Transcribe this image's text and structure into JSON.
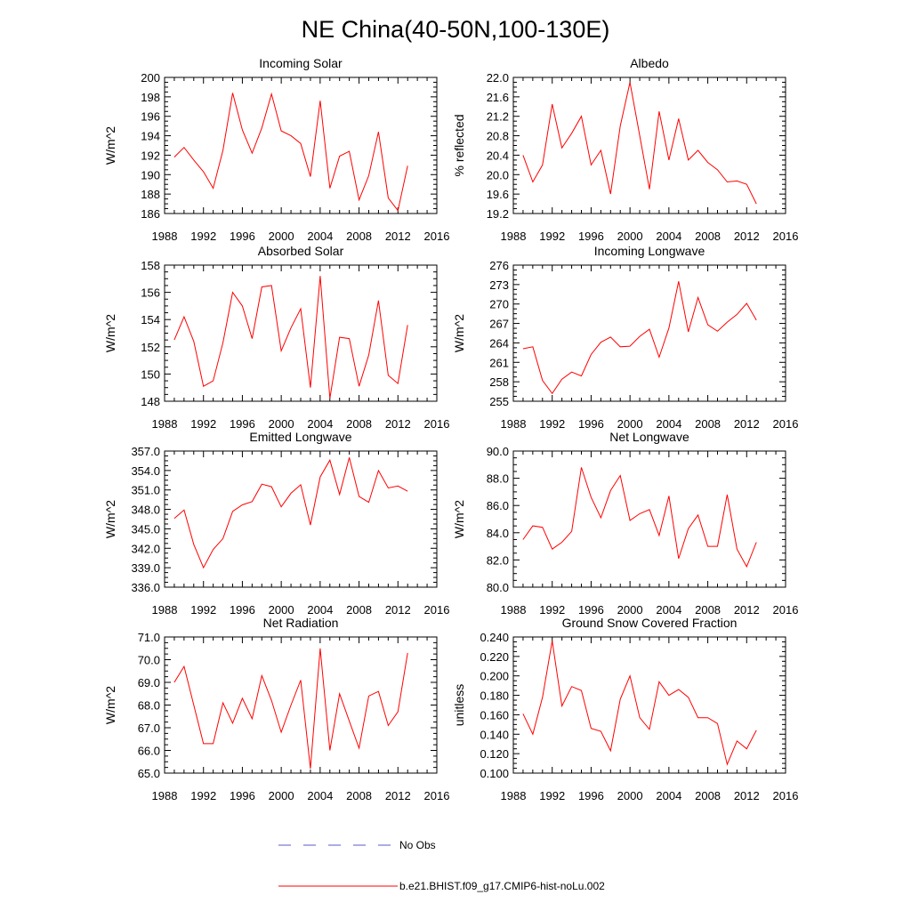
{
  "title": "NE China(40-50N,100-130E)",
  "legend": [
    {
      "label": "No Obs",
      "color": "#5a5ac8",
      "style": "dashed"
    },
    {
      "label": "b.e21.BHIST.f09_g17.CMIP6-hist-noLu.002",
      "color": "#ff0000",
      "style": "solid"
    }
  ],
  "chart_data": [
    {
      "type": "line",
      "title": "Incoming Solar",
      "ylabel": "W/m^2",
      "xlim": [
        1988,
        2016
      ],
      "xticks": [
        "1988",
        "1992",
        "1996",
        "2000",
        "2004",
        "2008",
        "2012",
        "2016"
      ],
      "ylim": [
        186,
        200
      ],
      "yticks": [
        "186",
        "188",
        "190",
        "192",
        "194",
        "196",
        "198",
        "200"
      ],
      "x": [
        1989,
        1990,
        1991,
        1992,
        1993,
        1994,
        1995,
        1996,
        1997,
        1998,
        1999,
        2000,
        2001,
        2002,
        2003,
        2004,
        2005,
        2006,
        2007,
        2008,
        2009,
        2010,
        2011,
        2012,
        2013
      ],
      "series": [
        {
          "values": [
            191.8,
            192.8,
            191.5,
            190.3,
            188.6,
            192.5,
            198.4,
            194.6,
            192.2,
            194.8,
            198.3,
            194.5,
            194.0,
            193.2,
            189.8,
            197.6,
            188.6,
            191.9,
            192.4,
            187.4,
            189.9,
            194.4,
            187.6,
            186.3,
            190.9
          ],
          "color": "#ff0000"
        }
      ]
    },
    {
      "type": "line",
      "title": "Albedo",
      "ylabel": "% reflected",
      "xlim": [
        1988,
        2016
      ],
      "xticks": [
        "1988",
        "1992",
        "1996",
        "2000",
        "2004",
        "2008",
        "2012",
        "2016"
      ],
      "ylim": [
        19.2,
        22.0
      ],
      "yticks": [
        "19.2",
        "19.6",
        "20.0",
        "20.4",
        "20.8",
        "21.2",
        "21.6",
        "22.0"
      ],
      "x": [
        1989,
        1990,
        1991,
        1992,
        1993,
        1994,
        1995,
        1996,
        1997,
        1998,
        1999,
        2000,
        2001,
        2002,
        2003,
        2004,
        2005,
        2006,
        2007,
        2008,
        2009,
        2010,
        2011,
        2012,
        2013
      ],
      "series": [
        {
          "values": [
            20.4,
            19.85,
            20.2,
            21.45,
            20.55,
            20.85,
            21.2,
            20.2,
            20.5,
            19.6,
            21.0,
            21.9,
            20.8,
            19.7,
            21.3,
            20.3,
            21.15,
            20.3,
            20.5,
            20.25,
            20.1,
            19.85,
            19.87,
            19.8,
            19.4
          ],
          "color": "#ff0000"
        }
      ]
    },
    {
      "type": "line",
      "title": "Absorbed Solar",
      "ylabel": "W/m^2",
      "xlim": [
        1988,
        2016
      ],
      "xticks": [
        "1988",
        "1992",
        "1996",
        "2000",
        "2004",
        "2008",
        "2012",
        "2016"
      ],
      "ylim": [
        148,
        158
      ],
      "yticks": [
        "148",
        "150",
        "152",
        "154",
        "156",
        "158"
      ],
      "x": [
        1989,
        1990,
        1991,
        1992,
        1993,
        1994,
        1995,
        1996,
        1997,
        1998,
        1999,
        2000,
        2001,
        2002,
        2003,
        2004,
        2005,
        2006,
        2007,
        2008,
        2009,
        2010,
        2011,
        2012,
        2013
      ],
      "series": [
        {
          "values": [
            152.5,
            154.2,
            152.4,
            149.1,
            149.5,
            152.3,
            156.0,
            155.0,
            152.6,
            156.4,
            156.5,
            151.7,
            153.4,
            154.8,
            149.0,
            157.2,
            148.2,
            152.7,
            152.6,
            149.1,
            151.4,
            155.4,
            149.9,
            149.3,
            153.6
          ],
          "color": "#ff0000"
        }
      ]
    },
    {
      "type": "line",
      "title": "Incoming Longwave",
      "ylabel": "W/m^2",
      "xlim": [
        1988,
        2016
      ],
      "xticks": [
        "1988",
        "1992",
        "1996",
        "2000",
        "2004",
        "2008",
        "2012",
        "2016"
      ],
      "ylim": [
        255,
        276
      ],
      "yticks": [
        "255",
        "258",
        "261",
        "264",
        "267",
        "270",
        "273",
        "276"
      ],
      "x": [
        1989,
        1990,
        1991,
        1992,
        1993,
        1994,
        1995,
        1996,
        1997,
        1998,
        1999,
        2000,
        2001,
        2002,
        2003,
        2004,
        2005,
        2006,
        2007,
        2008,
        2009,
        2010,
        2011,
        2012,
        2013
      ],
      "series": [
        {
          "values": [
            263.1,
            263.4,
            258.2,
            256.2,
            258.4,
            259.5,
            258.9,
            262.2,
            264.1,
            264.9,
            263.4,
            263.5,
            265.0,
            266.1,
            261.8,
            266.3,
            273.5,
            265.7,
            271.0,
            266.8,
            265.8,
            267.2,
            268.4,
            270.1,
            267.5
          ],
          "color": "#ff0000"
        }
      ]
    },
    {
      "type": "line",
      "title": "Emitted Longwave",
      "ylabel": "W/m^2",
      "xlim": [
        1988,
        2016
      ],
      "xticks": [
        "1988",
        "1992",
        "1996",
        "2000",
        "2004",
        "2008",
        "2012",
        "2016"
      ],
      "ylim": [
        336,
        357
      ],
      "yticks": [
        "336.0",
        "339.0",
        "342.0",
        "345.0",
        "348.0",
        "351.0",
        "354.0",
        "357.0"
      ],
      "x": [
        1989,
        1990,
        1991,
        1992,
        1993,
        1994,
        1995,
        1996,
        1997,
        1998,
        1999,
        2000,
        2001,
        2002,
        2003,
        2004,
        2005,
        2006,
        2007,
        2008,
        2009,
        2010,
        2011,
        2012,
        2013
      ],
      "series": [
        {
          "values": [
            346.6,
            347.9,
            342.6,
            339.0,
            341.8,
            343.5,
            347.7,
            348.7,
            349.2,
            351.9,
            351.5,
            348.4,
            350.5,
            351.8,
            345.6,
            353.0,
            355.6,
            350.3,
            356.0,
            350.0,
            349.1,
            354.0,
            351.3,
            351.6,
            350.8
          ],
          "color": "#ff0000"
        }
      ]
    },
    {
      "type": "line",
      "title": "Net Longwave",
      "ylabel": "W/m^2",
      "xlim": [
        1988,
        2016
      ],
      "xticks": [
        "1988",
        "1992",
        "1996",
        "2000",
        "2004",
        "2008",
        "2012",
        "2016"
      ],
      "ylim": [
        80,
        90
      ],
      "yticks": [
        "80.0",
        "82.0",
        "84.0",
        "86.0",
        "88.0",
        "90.0"
      ],
      "x": [
        1989,
        1990,
        1991,
        1992,
        1993,
        1994,
        1995,
        1996,
        1997,
        1998,
        1999,
        2000,
        2001,
        2002,
        2003,
        2004,
        2005,
        2006,
        2007,
        2008,
        2009,
        2010,
        2011,
        2012,
        2013
      ],
      "series": [
        {
          "values": [
            83.5,
            84.5,
            84.4,
            82.8,
            83.3,
            84.1,
            88.8,
            86.6,
            85.1,
            87.1,
            88.2,
            84.9,
            85.4,
            85.7,
            83.8,
            86.7,
            82.1,
            84.3,
            85.3,
            83.0,
            83.0,
            86.8,
            82.8,
            81.5,
            83.3
          ],
          "color": "#ff0000"
        }
      ]
    },
    {
      "type": "line",
      "title": "Net Radiation",
      "ylabel": "W/m^2",
      "xlim": [
        1988,
        2016
      ],
      "xticks": [
        "1988",
        "1992",
        "1996",
        "2000",
        "2004",
        "2008",
        "2012",
        "2016"
      ],
      "ylim": [
        65,
        71
      ],
      "yticks": [
        "65.0",
        "66.0",
        "67.0",
        "68.0",
        "69.0",
        "70.0",
        "71.0"
      ],
      "x": [
        1989,
        1990,
        1991,
        1992,
        1993,
        1994,
        1995,
        1996,
        1997,
        1998,
        1999,
        2000,
        2001,
        2002,
        2003,
        2004,
        2005,
        2006,
        2007,
        2008,
        2009,
        2010,
        2011,
        2012,
        2013
      ],
      "series": [
        {
          "values": [
            69.0,
            69.7,
            68.0,
            66.3,
            66.3,
            68.1,
            67.2,
            68.3,
            67.4,
            69.3,
            68.2,
            66.8,
            68.0,
            69.1,
            65.2,
            70.5,
            66.0,
            68.5,
            67.3,
            66.1,
            68.4,
            68.6,
            67.1,
            67.7,
            70.3
          ],
          "color": "#ff0000"
        }
      ]
    },
    {
      "type": "line",
      "title": "Ground Snow Covered Fraction",
      "ylabel": "unitless",
      "xlim": [
        1988,
        2016
      ],
      "xticks": [
        "1988",
        "1992",
        "1996",
        "2000",
        "2004",
        "2008",
        "2012",
        "2016"
      ],
      "ylim": [
        0.1,
        0.24
      ],
      "yticks": [
        "0.100",
        "0.120",
        "0.140",
        "0.160",
        "0.180",
        "0.200",
        "0.220",
        "0.240"
      ],
      "x": [
        1989,
        1990,
        1991,
        1992,
        1993,
        1994,
        1995,
        1996,
        1997,
        1998,
        1999,
        2000,
        2001,
        2002,
        2003,
        2004,
        2005,
        2006,
        2007,
        2008,
        2009,
        2010,
        2011,
        2012,
        2013
      ],
      "series": [
        {
          "values": [
            0.161,
            0.14,
            0.178,
            0.236,
            0.169,
            0.189,
            0.185,
            0.146,
            0.143,
            0.123,
            0.176,
            0.2,
            0.157,
            0.145,
            0.194,
            0.18,
            0.186,
            0.178,
            0.157,
            0.157,
            0.151,
            0.109,
            0.133,
            0.125,
            0.144
          ],
          "color": "#ff0000"
        }
      ]
    }
  ]
}
